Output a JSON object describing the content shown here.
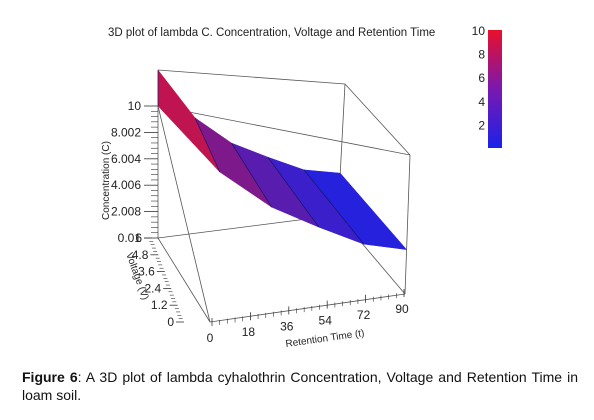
{
  "caption": {
    "label": "Figure 6",
    "text": ": A 3D plot of lambda cyhalothrin Concentration, Voltage and Retention Time in loam soil."
  },
  "colors": {
    "low": "#1a22e8",
    "high": "#e8102a",
    "frame": "#555555"
  },
  "chart_data": {
    "type": "surface3d",
    "title": "3D plot of lambda C. Concentration, Voltage and Retention Time",
    "x_axis": {
      "label": "Retention Time (t)",
      "ticks": [
        "0",
        "18",
        "36",
        "54",
        "72",
        "90"
      ],
      "range": [
        0,
        90
      ]
    },
    "y_axis": {
      "label": "Voltage (V)",
      "ticks": [
        "0",
        "1.2",
        "2.4",
        "3.6",
        "4.8",
        "6"
      ],
      "range": [
        0,
        6
      ]
    },
    "z_axis": {
      "label": "Concentration (C)",
      "ticks": [
        "0.01",
        "2.008",
        "4.006",
        "6.004",
        "8.002",
        "10"
      ],
      "range": [
        0.01,
        10
      ]
    },
    "colorbar": {
      "ticks": [
        "2",
        "4",
        "6",
        "8",
        "10"
      ],
      "range": [
        0,
        10
      ]
    },
    "surface": {
      "t": [
        0,
        18,
        36,
        54,
        72,
        90
      ],
      "concentration_profile": [
        10,
        7.2,
        5.6,
        4.6,
        3.6,
        3.2
      ]
    }
  }
}
